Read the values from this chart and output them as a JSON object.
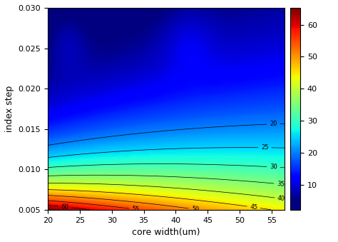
{
  "xlabel": "core width(um)",
  "ylabel": "index step",
  "xmin": 20,
  "xmax": 57,
  "ymin": 0.005,
  "ymax": 0.03,
  "colorbar_ticks": [
    10,
    20,
    30,
    40,
    50,
    60
  ],
  "contour_levels": [
    20,
    25,
    30,
    35,
    40,
    45,
    50,
    55,
    60
  ],
  "vmin": 5,
  "vmax": 65,
  "xticks": [
    20,
    25,
    30,
    35,
    40,
    45,
    50,
    55
  ],
  "yticks": [
    0.005,
    0.01,
    0.015,
    0.02,
    0.025,
    0.03
  ],
  "figsize": [
    4.74,
    3.39
  ],
  "dpi": 100
}
